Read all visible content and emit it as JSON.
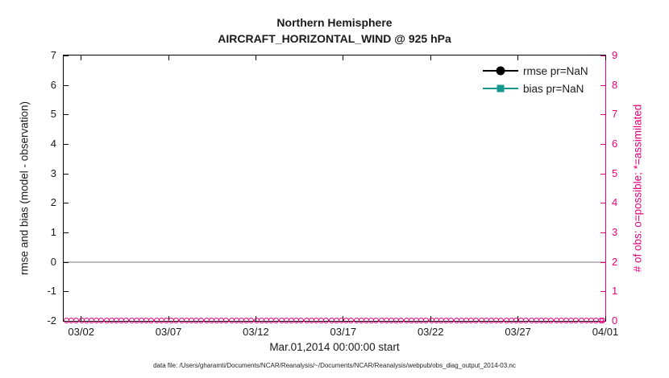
{
  "title": {
    "line1": "Northern Hemisphere",
    "line2": "AIRCRAFT_HORIZONTAL_WIND @ 925 hPa"
  },
  "chart_data": {
    "type": "line",
    "title": "Northern Hemisphere",
    "subtitle": "AIRCRAFT_HORIZONTAL_WIND @ 925 hPa",
    "xlabel": "Mar.01,2014 00:00:00 start",
    "ylabel_left": "rmse and bias (model - observation)",
    "ylabel_right": "# of obs: o=possible; *=assimilated",
    "x_ticks": [
      "03/02",
      "03/07",
      "03/12",
      "03/17",
      "03/22",
      "03/27",
      "04/01"
    ],
    "x_tick_days": [
      1,
      6,
      11,
      16,
      21,
      26,
      31
    ],
    "x_range_days": [
      0,
      31
    ],
    "ylim_left": [
      -2,
      7
    ],
    "ylim_right": [
      0,
      9
    ],
    "y_left_ticks": [
      -2,
      -1,
      0,
      1,
      2,
      3,
      4,
      5,
      6,
      7
    ],
    "y_right_ticks": [
      0,
      1,
      2,
      3,
      4,
      5,
      6,
      7,
      8,
      9
    ],
    "grid": false,
    "legend_position": "top-right-inside",
    "zero_line_y": 0,
    "series": [
      {
        "name": "rmse pr=NaN",
        "color": "#000000",
        "marker": "circle",
        "values": [],
        "note": "all values NaN - no curve drawn"
      },
      {
        "name": "bias pr=NaN",
        "color": "#12968e",
        "marker": "square",
        "values": [],
        "note": "all values NaN - no curve drawn"
      }
    ],
    "obs_counts": {
      "label": "# of obs",
      "possible_marker": "o",
      "assimilated_marker": "*",
      "value_all_times": 0,
      "color": "#e5007d",
      "note": "row of magenta o markers at right-axis value 0 spanning the full time range"
    }
  },
  "colors": {
    "left_axis": "#000000",
    "right_axis": "#e5007d",
    "zero_line": "#bcbcbc",
    "background": "#ffffff"
  },
  "footer": "data file: /Users/gharamti/Documents/NCAR/Reanalysis/~/Documents/NCAR/Reanalysis/webpub/obs_diag_output_2014-03.nc"
}
